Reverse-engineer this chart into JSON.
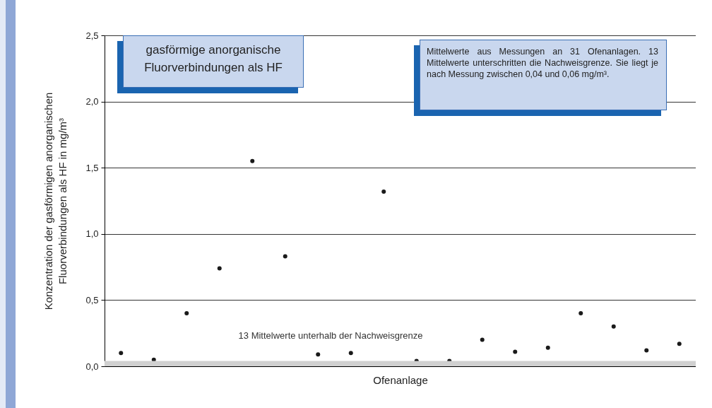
{
  "chart_data": {
    "type": "scatter",
    "title": "gasförmige anorganische Fluorverbindungen als HF",
    "xlabel": "Ofenanlage",
    "ylabel": "Konzentration der gasförmigen anorganischen Fluorverbindungen als HF in mg/m³",
    "annotations": [
      "Mittelwerte aus Messungen an 31 Ofenanlagen. 13 Mittelwerte unterschritten die Nachweisgrenze. Sie liegt je nach Messung zwischen 0,04 und 0,06 mg/m³."
    ],
    "categories": [
      null,
      null,
      null,
      null,
      null,
      null,
      null,
      null,
      null,
      null,
      null,
      null,
      null,
      null,
      null,
      null,
      null,
      null
    ],
    "series": [
      {
        "color": "#1a1a1a",
        "values": [
          0.1,
          0.05,
          0.4,
          0.74,
          1.55,
          0.83,
          0.09,
          0.1,
          1.32,
          0.04,
          0.04,
          0.2,
          0.11,
          0.14,
          0.4,
          0.3,
          0.12,
          0.17
        ]
      }
    ],
    "ylim": [
      0,
      2.5
    ],
    "yticks": [
      {
        "value": 0,
        "label": "0,0"
      },
      {
        "value": 0.5,
        "label": "0,5"
      },
      {
        "value": 1,
        "label": "1,0"
      },
      {
        "value": 1.5,
        "label": "1,5"
      },
      {
        "value": 2,
        "label": "2,0"
      },
      {
        "value": 2.5,
        "label": "2,5"
      }
    ],
    "bands": [
      {
        "axis": "y",
        "from": 0,
        "to": 0.04,
        "label": "13 Mittelwerte unterhalb der Nachweisgrenze",
        "color": "#d0d0d0"
      }
    ],
    "grid": "y",
    "marker": "circle",
    "tick_labels": "y",
    "legend": false
  }
}
